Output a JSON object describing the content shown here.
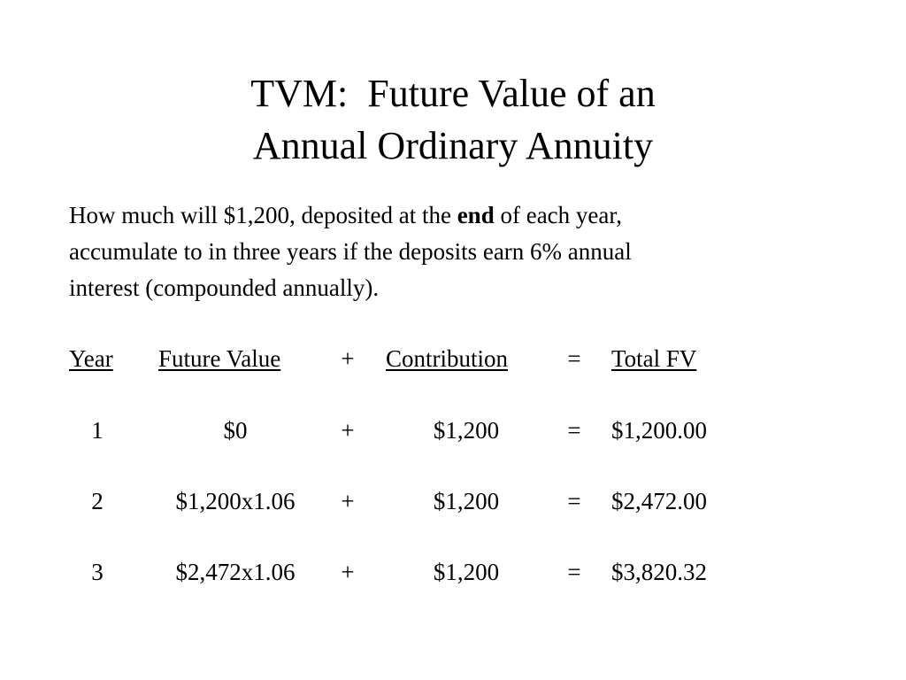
{
  "title": {
    "lines": [
      "TVM:  Future Value of an",
      "Annual Ordinary Annuity"
    ]
  },
  "paragraph": {
    "lines": [
      {
        "parts": [
          {
            "text": "How much will $1,200, deposited at the "
          },
          {
            "text": "end",
            "bold": true
          },
          {
            "text": " of each year,"
          }
        ]
      },
      {
        "parts": [
          {
            "text": "accumulate to in three years if the deposits earn 6% annual"
          }
        ]
      },
      {
        "parts": [
          {
            "text": "interest (compounded annually)."
          }
        ]
      }
    ]
  },
  "table": {
    "header": [
      "Year",
      "Future Value",
      "+",
      "Contribution",
      "=",
      "Total FV"
    ],
    "rows": [
      [
        "1",
        "$0",
        "+",
        "$1,200",
        "=",
        "$1,200.00"
      ],
      [
        "2",
        "$1,200x1.06",
        "+",
        "$1,200",
        "=",
        "$2,472.00"
      ],
      [
        "3",
        "$2,472x1.06",
        "+",
        "$1,200",
        "=",
        "$3,820.32"
      ]
    ]
  }
}
